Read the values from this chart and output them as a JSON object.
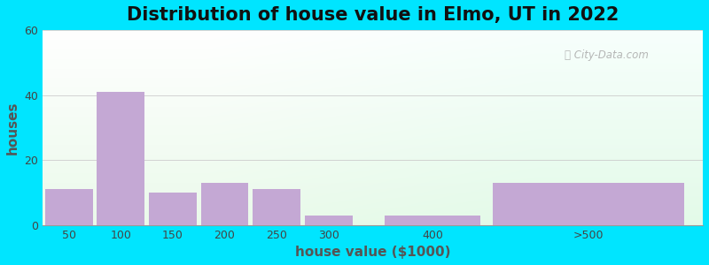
{
  "title": "Distribution of house value in Elmo, UT in 2022",
  "xlabel": "house value ($1000)",
  "ylabel": "houses",
  "bar_centers": [
    50,
    100,
    150,
    200,
    250,
    300,
    400,
    550
  ],
  "bar_widths": [
    50,
    50,
    50,
    50,
    50,
    50,
    100,
    200
  ],
  "values": [
    11,
    41,
    10,
    13,
    11,
    3,
    3,
    13
  ],
  "xtick_positions": [
    50,
    100,
    150,
    200,
    250,
    300,
    400,
    550
  ],
  "xtick_labels": [
    "50",
    "100",
    "150",
    "200",
    "250",
    "300",
    "400",
    ">500"
  ],
  "bar_color": "#c4a8d4",
  "ylim": [
    0,
    60
  ],
  "yticks": [
    0,
    20,
    40,
    60
  ],
  "xlim": [
    25,
    660
  ],
  "background_outer": "#00e5ff",
  "title_fontsize": 15,
  "axis_label_fontsize": 11,
  "tick_fontsize": 9,
  "watermark_text": " City-Data.com",
  "watermark_icon": "ⓘ",
  "grid_color": "#cccccc",
  "spine_color": "#999999"
}
